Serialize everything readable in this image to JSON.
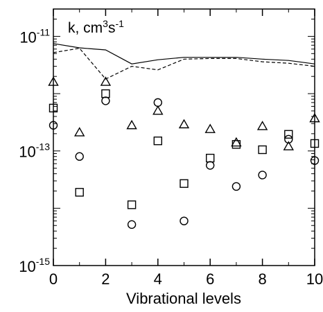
{
  "chart_data": {
    "type": "scatter",
    "annotation": {
      "base": "k, cm",
      "sup1": "3",
      "mid": "s",
      "sup2": "-1"
    },
    "xlabel": "Vibrational levels",
    "xlim": [
      0,
      10
    ],
    "x_ticks": [
      0,
      2,
      4,
      6,
      8,
      10
    ],
    "x_tick_labels": [
      "0",
      "2",
      "4",
      "6",
      "8",
      "10"
    ],
    "y_scale": "log",
    "ylim": [
      1e-15,
      3e-11
    ],
    "y_ticks": [
      {
        "value": 1e-15,
        "base": "10",
        "exp": "-15"
      },
      {
        "value": 1e-13,
        "base": "10",
        "exp": "-13"
      },
      {
        "value": 1e-11,
        "base": "10",
        "exp": "-11"
      }
    ],
    "grid": false,
    "legend": "none",
    "colors": {
      "axis": "#000000",
      "series": "#000000"
    },
    "series": [
      {
        "type": "line",
        "style": "solid",
        "x": [
          0,
          1,
          2,
          3,
          4,
          5,
          6,
          7,
          8,
          9,
          10
        ],
        "y": [
          7.5e-12,
          6.3e-12,
          5.8e-12,
          3.3e-12,
          3.9e-12,
          4.3e-12,
          4.3e-12,
          4.3e-12,
          4e-12,
          3.8e-12,
          3.3e-12
        ]
      },
      {
        "type": "line",
        "style": "dashed",
        "x": [
          0,
          1,
          2,
          3,
          4,
          5,
          6,
          7,
          8,
          9,
          10
        ],
        "y": [
          5.2e-12,
          6.2e-12,
          1.8e-12,
          3e-12,
          2.6e-12,
          4e-12,
          4.1e-12,
          4.1e-12,
          3.6e-12,
          3.4e-12,
          3e-12
        ]
      },
      {
        "type": "scatter",
        "marker": "triangle",
        "x": [
          0,
          1,
          2,
          3,
          4,
          5,
          6,
          7,
          8,
          9,
          10
        ],
        "y": [
          1.6e-12,
          2.1e-13,
          1.6e-12,
          2.8e-13,
          5e-13,
          2.9e-13,
          2.4e-13,
          1.4e-13,
          2.7e-13,
          1.2e-13,
          3.7e-13
        ]
      },
      {
        "type": "scatter",
        "marker": "square",
        "x": [
          0,
          1,
          2,
          3,
          4,
          5,
          6,
          7,
          8,
          9,
          10
        ],
        "y": [
          5.6e-13,
          1.9e-14,
          1e-12,
          1.15e-14,
          1.5e-13,
          2.7e-14,
          7.5e-14,
          1.3e-13,
          1.05e-13,
          1.95e-13,
          1.35e-13
        ]
      },
      {
        "type": "scatter",
        "marker": "circle",
        "x": [
          0,
          1,
          2,
          3,
          4,
          5,
          6,
          7,
          8,
          9,
          10
        ],
        "y": [
          2.8e-13,
          8e-14,
          7.5e-13,
          5.2e-15,
          7e-13,
          6e-15,
          5.6e-14,
          2.4e-14,
          3.8e-14,
          1.6e-13,
          6.8e-14
        ]
      }
    ]
  }
}
